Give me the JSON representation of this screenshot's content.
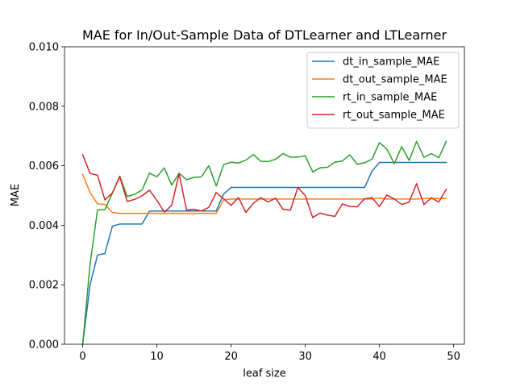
{
  "chart_data": {
    "type": "line",
    "title": "MAE for In/Out-Sample Data of DTLearner and LTLearner",
    "xlabel": "leaf size",
    "ylabel": "MAE",
    "xlim": [
      -2.45,
      51.45
    ],
    "ylim": [
      0,
      0.01
    ],
    "xticks": [
      0,
      10,
      20,
      30,
      40,
      50
    ],
    "yticks": [
      0.0,
      0.002,
      0.004,
      0.006,
      0.008,
      0.01
    ],
    "ytick_labels": [
      "0.000",
      "0.002",
      "0.004",
      "0.006",
      "0.008",
      "0.010"
    ],
    "grid": false,
    "legend_position": "top-right",
    "x": [
      0,
      1,
      2,
      3,
      4,
      5,
      6,
      7,
      8,
      9,
      10,
      11,
      12,
      13,
      14,
      15,
      16,
      17,
      18,
      19,
      20,
      21,
      22,
      23,
      24,
      25,
      26,
      27,
      28,
      29,
      30,
      31,
      32,
      33,
      34,
      35,
      36,
      37,
      38,
      39,
      40,
      41,
      42,
      43,
      44,
      45,
      46,
      47,
      48,
      49
    ],
    "series": [
      {
        "name": "dt_in_sample_MAE",
        "color": "#1f77b4",
        "values": [
          0.0,
          0.002,
          0.003,
          0.00305,
          0.00397,
          0.00404,
          0.00404,
          0.00404,
          0.00404,
          0.00447,
          0.00448,
          0.00448,
          0.00448,
          0.00448,
          0.00448,
          0.00448,
          0.00448,
          0.00448,
          0.00448,
          0.00505,
          0.00527,
          0.00527,
          0.00527,
          0.00527,
          0.00527,
          0.00527,
          0.00527,
          0.00527,
          0.00527,
          0.00527,
          0.00527,
          0.00527,
          0.00527,
          0.00527,
          0.00527,
          0.00527,
          0.00527,
          0.00527,
          0.00527,
          0.00582,
          0.00611,
          0.00611,
          0.00611,
          0.00611,
          0.00611,
          0.00611,
          0.00611,
          0.00611,
          0.00611,
          0.00611
        ]
      },
      {
        "name": "dt_out_sample_MAE",
        "color": "#ff7f0e",
        "values": [
          0.00571,
          0.0051,
          0.00472,
          0.0047,
          0.00443,
          0.0044,
          0.0044,
          0.0044,
          0.0044,
          0.0044,
          0.0044,
          0.0044,
          0.0044,
          0.0044,
          0.0044,
          0.0044,
          0.0044,
          0.0044,
          0.0044,
          0.00485,
          0.00488,
          0.00488,
          0.00488,
          0.00488,
          0.00488,
          0.00488,
          0.00488,
          0.00488,
          0.00488,
          0.00488,
          0.00488,
          0.00488,
          0.00488,
          0.00488,
          0.00488,
          0.00488,
          0.00488,
          0.00488,
          0.00488,
          0.00488,
          0.00492,
          0.00488,
          0.00488,
          0.00488,
          0.00488,
          0.00488,
          0.0049,
          0.0049,
          0.0049,
          0.0049
        ]
      },
      {
        "name": "rt_in_sample_MAE",
        "color": "#2ca02c",
        "values": [
          0.0,
          0.0027,
          0.00452,
          0.00453,
          0.00508,
          0.00565,
          0.00497,
          0.00504,
          0.00518,
          0.00575,
          0.00563,
          0.00593,
          0.00535,
          0.00575,
          0.00553,
          0.00561,
          0.00563,
          0.006,
          0.00532,
          0.00604,
          0.00612,
          0.00609,
          0.00619,
          0.00638,
          0.00615,
          0.00614,
          0.00622,
          0.00641,
          0.00629,
          0.00629,
          0.00634,
          0.00579,
          0.00593,
          0.00595,
          0.00612,
          0.00616,
          0.00637,
          0.00605,
          0.0061,
          0.00622,
          0.00678,
          0.00656,
          0.00607,
          0.00664,
          0.00618,
          0.00682,
          0.00628,
          0.00641,
          0.00627,
          0.00682
        ]
      },
      {
        "name": "rt_out_sample_MAE",
        "color": "#d62728",
        "values": [
          0.00637,
          0.00574,
          0.00568,
          0.00485,
          0.00509,
          0.00563,
          0.0048,
          0.00487,
          0.00499,
          0.00518,
          0.00484,
          0.00444,
          0.00467,
          0.00573,
          0.00451,
          0.00454,
          0.00448,
          0.0046,
          0.0051,
          0.00489,
          0.00467,
          0.00493,
          0.00443,
          0.00474,
          0.00493,
          0.00478,
          0.00491,
          0.00454,
          0.00451,
          0.00527,
          0.005,
          0.00426,
          0.00441,
          0.00434,
          0.0043,
          0.00472,
          0.00463,
          0.00462,
          0.00489,
          0.00493,
          0.00463,
          0.00502,
          0.00488,
          0.0047,
          0.00478,
          0.0054,
          0.0047,
          0.00492,
          0.00478,
          0.00521
        ]
      }
    ]
  }
}
